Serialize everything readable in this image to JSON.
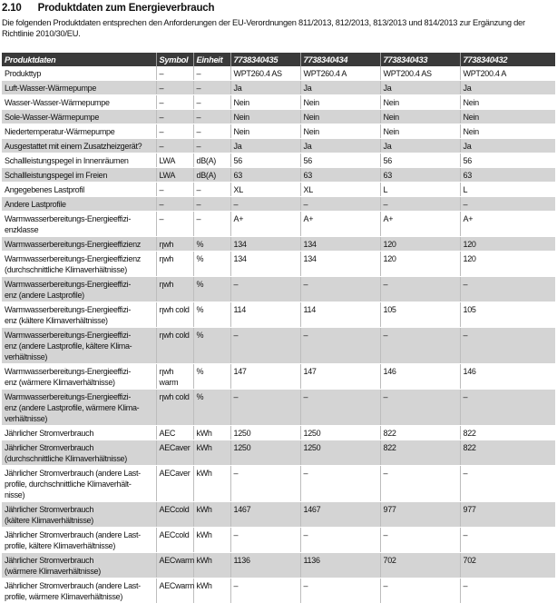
{
  "section": {
    "number": "2.10",
    "title": "Produktdaten zum Energieverbrauch",
    "intro": "Die folgenden Produktdaten entsprechen den Anforderungen der EU-Verordnungen 811/2013, 812/2013, 813/2013 und 814/2013 zur Ergänzung der Richtlinie 2010/30/EU."
  },
  "colors": {
    "header_bg": "#3a3a3a",
    "header_text": "#ffffff",
    "row_alt_bg": "#d4d4d4",
    "divider": "#bdbdbd"
  },
  "table": {
    "headers": [
      "Produktdaten",
      "Symbol",
      "Einheit",
      "7738340435",
      "7738340434",
      "7738340433",
      "7738340432"
    ],
    "rows": [
      {
        "label": "Produkttyp",
        "symbol": "–",
        "unit": "–",
        "values": [
          "WPT260.4 AS",
          "WPT260.4 A",
          "WPT200.4 AS",
          "WPT200.4 A"
        ]
      },
      {
        "label": "Luft-Wasser-Wärmepumpe",
        "symbol": "–",
        "unit": "–",
        "values": [
          "Ja",
          "Ja",
          "Ja",
          "Ja"
        ]
      },
      {
        "label": "Wasser-Wasser-Wärmepumpe",
        "symbol": "–",
        "unit": "–",
        "values": [
          "Nein",
          "Nein",
          "Nein",
          "Nein"
        ]
      },
      {
        "label": "Sole-Wasser-Wärmepumpe",
        "symbol": "–",
        "unit": "–",
        "values": [
          "Nein",
          "Nein",
          "Nein",
          "Nein"
        ]
      },
      {
        "label": "Niedertemperatur-Wärmepumpe",
        "symbol": "–",
        "unit": "–",
        "values": [
          "Nein",
          "Nein",
          "Nein",
          "Nein"
        ]
      },
      {
        "label": "Ausgestattet mit einem Zusatzheizgerät?",
        "symbol": "–",
        "unit": "–",
        "values": [
          "Ja",
          "Ja",
          "Ja",
          "Ja"
        ]
      },
      {
        "label": "Schallleistungspegel in Innenräumen",
        "symbol": "LWA",
        "unit": "dB(A)",
        "values": [
          "56",
          "56",
          "56",
          "56"
        ]
      },
      {
        "label": "Schallleistungspegel im Freien",
        "symbol": "LWA",
        "unit": "dB(A)",
        "values": [
          "63",
          "63",
          "63",
          "63"
        ]
      },
      {
        "label": "Angegebenes Lastprofil",
        "symbol": "–",
        "unit": "–",
        "values": [
          "XL",
          "XL",
          "L",
          "L"
        ]
      },
      {
        "label": "Andere Lastprofile",
        "symbol": "–",
        "unit": "–",
        "values": [
          "–",
          "–",
          "–",
          "–"
        ]
      },
      {
        "label": "Warmwasserbereitungs-Energieeffizi-\nenzklasse",
        "symbol": "–",
        "unit": "–",
        "values": [
          "A+",
          "A+",
          "A+",
          "A+"
        ]
      },
      {
        "label": "Warmwasserbereitungs-Energieeffizienz",
        "symbol": "ηwh",
        "unit": "%",
        "values": [
          "134",
          "134",
          "120",
          "120"
        ]
      },
      {
        "label": "Warmwasserbereitungs-Energieeffizienz\n(durchschnittliche Klimaverhältnisse)",
        "symbol": "ηwh",
        "unit": "%",
        "values": [
          "134",
          "134",
          "120",
          "120"
        ]
      },
      {
        "label": "Warmwasserbereitungs-Energieeffizi-\nenz (andere Lastprofile)",
        "symbol": "ηwh",
        "unit": "%",
        "values": [
          "–",
          "–",
          "–",
          "–"
        ]
      },
      {
        "label": "Warmwasserbereitungs-Energieeffizi-\nenz (kältere Klimaverhältnisse)",
        "symbol": "ηwh cold",
        "unit": "%",
        "values": [
          "114",
          "114",
          "105",
          "105"
        ]
      },
      {
        "label": "Warmwasserbereitungs-Energieeffizi-\nenz (andere Lastprofile, kältere Klima-\nverhältnisse)",
        "symbol": "ηwh cold",
        "unit": "%",
        "values": [
          "–",
          "–",
          "–",
          "–"
        ]
      },
      {
        "label": "Warmwasserbereitungs-Energieeffizi-\nenz (wärmere Klimaverhältnisse)",
        "symbol": "ηwh warm",
        "unit": "%",
        "values": [
          "147",
          "147",
          "146",
          "146"
        ]
      },
      {
        "label": "Warmwasserbereitungs-Energieeffizi-\nenz (andere Lastprofile, wärmere Klima-\nverhältnisse)",
        "symbol": "ηwh cold",
        "unit": "%",
        "values": [
          "–",
          "–",
          "–",
          "–"
        ]
      },
      {
        "label": "Jährlicher Stromverbrauch",
        "symbol": "AEC",
        "unit": "kWh",
        "values": [
          "1250",
          "1250",
          "822",
          "822"
        ]
      },
      {
        "label": "Jährlicher Stromverbrauch\n(durchschnittliche Klimaverhältnisse)",
        "symbol": "AECaver",
        "unit": "kWh",
        "values": [
          "1250",
          "1250",
          "822",
          "822"
        ]
      },
      {
        "label": "Jährlicher Stromverbrauch (andere Last-\nprofile, durchschnittliche Klimaverhält-\nnisse)",
        "symbol": "AECaver",
        "unit": "kWh",
        "values": [
          "–",
          "–",
          "–",
          "–"
        ]
      },
      {
        "label": "Jährlicher Stromverbrauch\n(kältere Klimaverhältnisse)",
        "symbol": "AECcold",
        "unit": "kWh",
        "values": [
          "1467",
          "1467",
          "977",
          "977"
        ]
      },
      {
        "label": "Jährlicher Stromverbrauch (andere Last-\nprofile, kältere Klimaverhältnisse)",
        "symbol": "AECcold",
        "unit": "kWh",
        "values": [
          "–",
          "–",
          "–",
          "–"
        ]
      },
      {
        "label": "Jährlicher Stromverbrauch\n(wärmere Klimaverhältnisse)",
        "symbol": "AECwarm",
        "unit": "kWh",
        "values": [
          "1136",
          "1136",
          "702",
          "702"
        ]
      },
      {
        "label": "Jährlicher Stromverbrauch (andere Last-\nprofile, wärmere Klimaverhältnisse)",
        "symbol": "AECwarm",
        "unit": "kWh",
        "values": [
          "–",
          "–",
          "–",
          "–"
        ]
      }
    ]
  }
}
